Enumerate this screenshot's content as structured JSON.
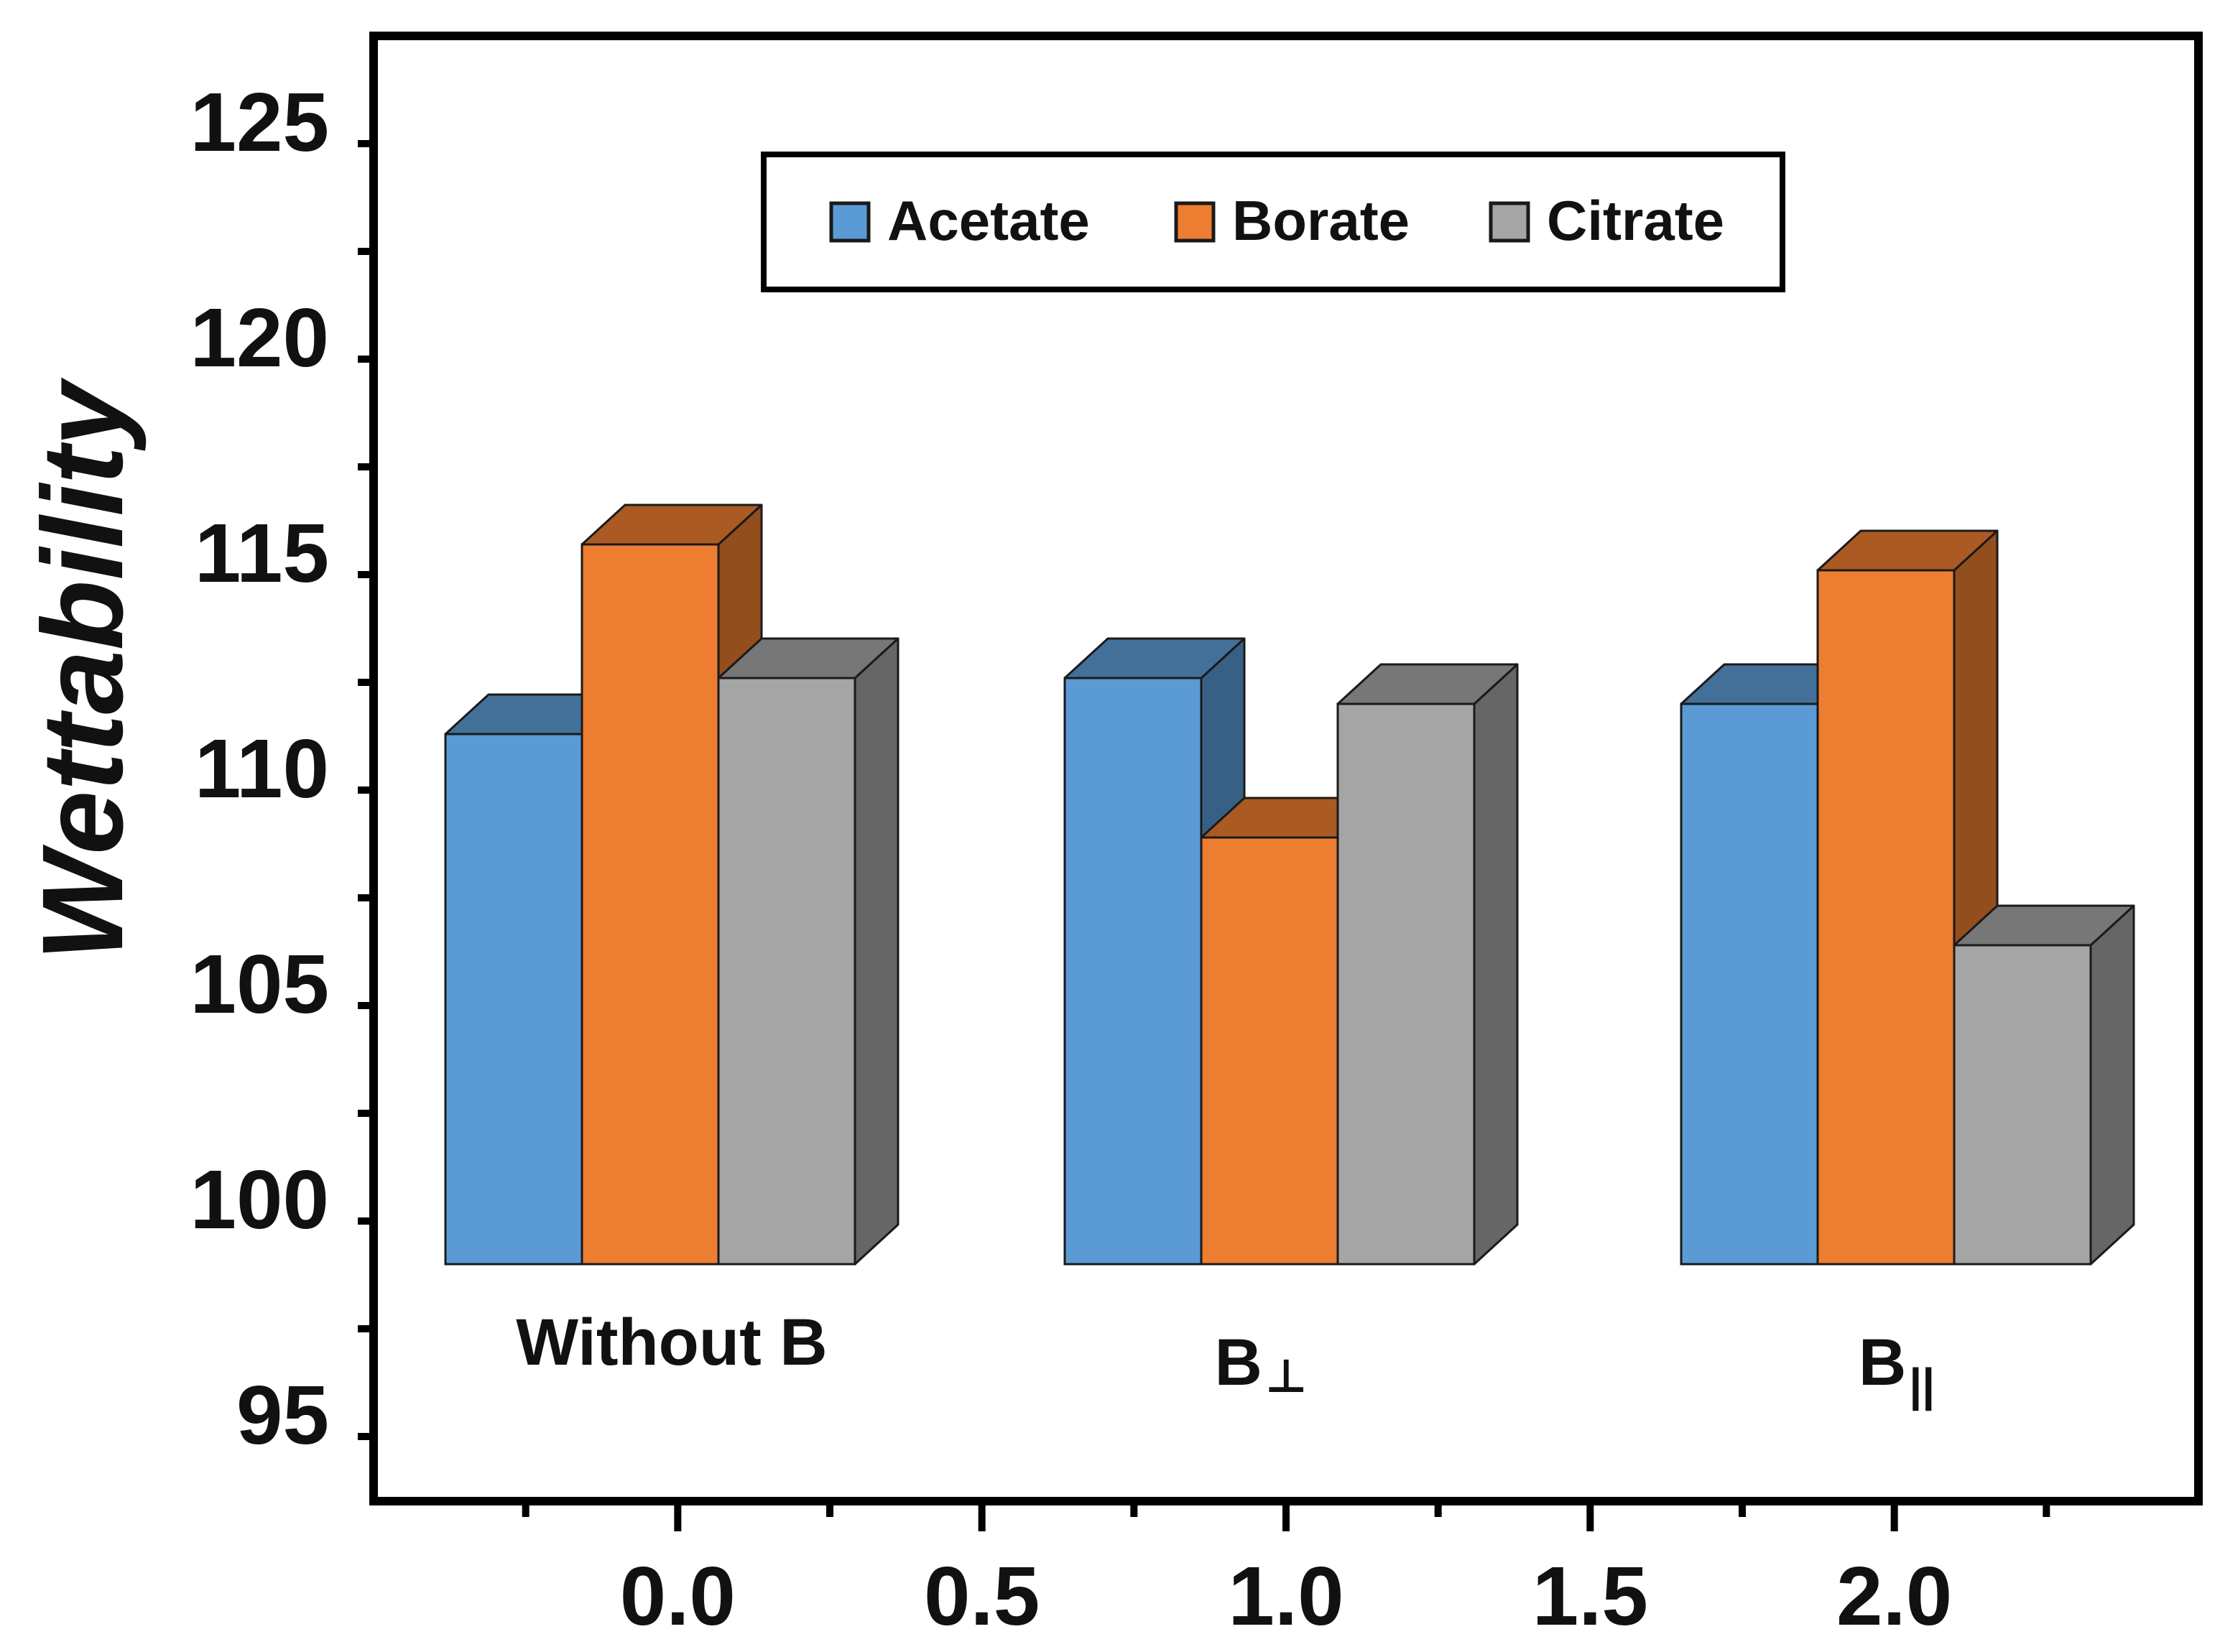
{
  "chart_data": {
    "type": "bar",
    "style": "3d-clustered",
    "title": "",
    "xlabel": "",
    "ylabel": "Wettability",
    "x_ticks": [
      "0.0",
      "0.5",
      "1.0",
      "1.5",
      "2.0"
    ],
    "y_ticks": [
      "95",
      "100",
      "105",
      "110",
      "115",
      "120",
      "125"
    ],
    "xlim": [
      -0.5,
      2.5
    ],
    "ylim": [
      93,
      127
    ],
    "grid": false,
    "legend_position": "top-center",
    "categories": [
      "Without B",
      "B⊥",
      "B||"
    ],
    "category_labels": [
      {
        "main": "Without B",
        "sub": ""
      },
      {
        "main": "B",
        "sub": "⊥"
      },
      {
        "main": "B",
        "sub": "||"
      }
    ],
    "series": [
      {
        "name": "Acetate",
        "color": "#5b9bd5",
        "values": [
          110.8,
          112.1,
          111.5
        ]
      },
      {
        "name": "Borate",
        "color": "#ed7d31",
        "values": [
          115.2,
          108.4,
          114.6
        ]
      },
      {
        "name": "Citrate",
        "color": "#a5a5a5",
        "values": [
          112.1,
          111.5,
          105.9
        ]
      }
    ],
    "baseline": 98.5
  }
}
